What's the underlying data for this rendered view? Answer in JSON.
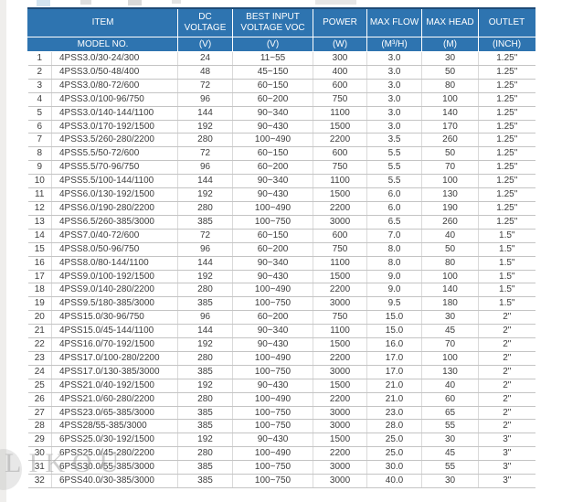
{
  "page": {
    "watermark_text": "LIKOU"
  },
  "colors": {
    "header_bg": "#2E74B0",
    "header_text": "#FFFFFF",
    "table_top_border": "#1D4A76",
    "grid_line": "#C4C4C4",
    "body_text": "#3D3D3D"
  },
  "table": {
    "header_row1": {
      "item": "ITEM",
      "dc_voltage": "DC VOLTAGE",
      "best_input": "BEST INPUT VOLTAGE VOC",
      "power": "POWER",
      "max_flow": "MAX FLOW",
      "max_head": "MAX HEAD",
      "outlet": "OUTLET"
    },
    "header_row2": {
      "model_no": "MODEL NO.",
      "dc_unit": "(V)",
      "best_unit": "(V)",
      "power_unit": "(W)",
      "flow_unit": "(M³/H)",
      "head_unit": "(M)",
      "outlet_unit": "(INCH)"
    },
    "column_keys": [
      "no",
      "model-no",
      "dc-voltage",
      "best-input-voltage",
      "power",
      "max-flow",
      "max-head",
      "outlet"
    ],
    "rows": [
      [
        "1",
        "4PSS3.0/30-24/300",
        "24",
        "11~55",
        "300",
        "3.0",
        "30",
        "1.25\""
      ],
      [
        "2",
        "4PSS3.0/50-48/400",
        "48",
        "45~150",
        "400",
        "3.0",
        "50",
        "1.25\""
      ],
      [
        "3",
        "4PSS3.0/80-72/600",
        "72",
        "60~150",
        "600",
        "3.0",
        "80",
        "1.25\""
      ],
      [
        "4",
        "4PSS3.0/100-96/750",
        "96",
        "60~200",
        "750",
        "3.0",
        "100",
        "1.25\""
      ],
      [
        "5",
        "4PSS3.0/140-144/1100",
        "144",
        "90~340",
        "1100",
        "3.0",
        "140",
        "1.25\""
      ],
      [
        "6",
        "4PSS3.0/170-192/1500",
        "192",
        "90~430",
        "1500",
        "3.0",
        "170",
        "1.25\""
      ],
      [
        "7",
        "4PSS3.5/260-280/2200",
        "280",
        "100~490",
        "2200",
        "3.5",
        "260",
        "1.25\""
      ],
      [
        "8",
        "4PSS5.5/50-72/600",
        "72",
        "60~150",
        "600",
        "5.5",
        "50",
        "1.25\""
      ],
      [
        "9",
        "4PSS5.5/70-96/750",
        "96",
        "60~200",
        "750",
        "5.5",
        "70",
        "1.25\""
      ],
      [
        "10",
        "4PSS5.5/100-144/1100",
        "144",
        "90~340",
        "1100",
        "5.5",
        "100",
        "1.25\""
      ],
      [
        "11",
        "4PSS6.0/130-192/1500",
        "192",
        "90~430",
        "1500",
        "6.0",
        "130",
        "1.25\""
      ],
      [
        "12",
        "4PSS6.0/190-280/2200",
        "280",
        "100~490",
        "2200",
        "6.0",
        "190",
        "1.25\""
      ],
      [
        "13",
        "4PSS6.5/260-385/3000",
        "385",
        "100~750",
        "3000",
        "6.5",
        "260",
        "1.25\""
      ],
      [
        "14",
        "4PSS7.0/40-72/600",
        "72",
        "60~150",
        "600",
        "7.0",
        "40",
        "1.5\""
      ],
      [
        "15",
        "4PSS8.0/50-96/750",
        "96",
        "60~200",
        "750",
        "8.0",
        "50",
        "1.5\""
      ],
      [
        "16",
        "4PSS8.0/80-144/1100",
        "144",
        "90~340",
        "1100",
        "8.0",
        "80",
        "1.5\""
      ],
      [
        "17",
        "4PSS9.0/100-192/1500",
        "192",
        "90~430",
        "1500",
        "9.0",
        "100",
        "1.5\""
      ],
      [
        "18",
        "4PSS9.0/140-280/2200",
        "280",
        "100~490",
        "2200",
        "9.0",
        "140",
        "1.5\""
      ],
      [
        "19",
        "4PSS9.5/180-385/3000",
        "385",
        "100~750",
        "3000",
        "9.5",
        "180",
        "1.5\""
      ],
      [
        "20",
        "4PSS15.0/30-96/750",
        "96",
        "60~200",
        "750",
        "15.0",
        "30",
        "2\""
      ],
      [
        "21",
        "4PSS15.0/45-144/1100",
        "144",
        "90~340",
        "1100",
        "15.0",
        "45",
        "2\""
      ],
      [
        "22",
        "4PSS16.0/70-192/1500",
        "192",
        "90~430",
        "1500",
        "16.0",
        "70",
        "2\""
      ],
      [
        "23",
        "4PSS17.0/100-280/2200",
        "280",
        "100~490",
        "2200",
        "17.0",
        "100",
        "2\""
      ],
      [
        "24",
        "4PSS17.0/130-385/3000",
        "385",
        "100~750",
        "3000",
        "17.0",
        "130",
        "2\""
      ],
      [
        "25",
        "4PSS21.0/40-192/1500",
        "192",
        "90~430",
        "1500",
        "21.0",
        "40",
        "2\""
      ],
      [
        "26",
        "4PSS21.0/60-280/2200",
        "280",
        "100~490",
        "2200",
        "21.0",
        "60",
        "2\""
      ],
      [
        "27",
        "4PSS23.0/65-385/3000",
        "385",
        "100~750",
        "3000",
        "23.0",
        "65",
        "2\""
      ],
      [
        "28",
        "4PSS28/55-385/3000",
        "385",
        "100~750",
        "3000",
        "28.0",
        "55",
        "2\""
      ],
      [
        "29",
        "6PSS25.0/30-192/1500",
        "192",
        "90~430",
        "1500",
        "25.0",
        "30",
        "3\""
      ],
      [
        "30",
        "6PSS25.0/45-280/2200",
        "280",
        "100~490",
        "2200",
        "25.0",
        "45",
        "3\""
      ],
      [
        "31",
        "6PSS30.0/55-385/3000",
        "385",
        "100~750",
        "3000",
        "30.0",
        "55",
        "3\""
      ],
      [
        "32",
        "6PSS40.0/30-385/3000",
        "385",
        "100~750",
        "3000",
        "40.0",
        "30",
        "3\""
      ]
    ]
  }
}
